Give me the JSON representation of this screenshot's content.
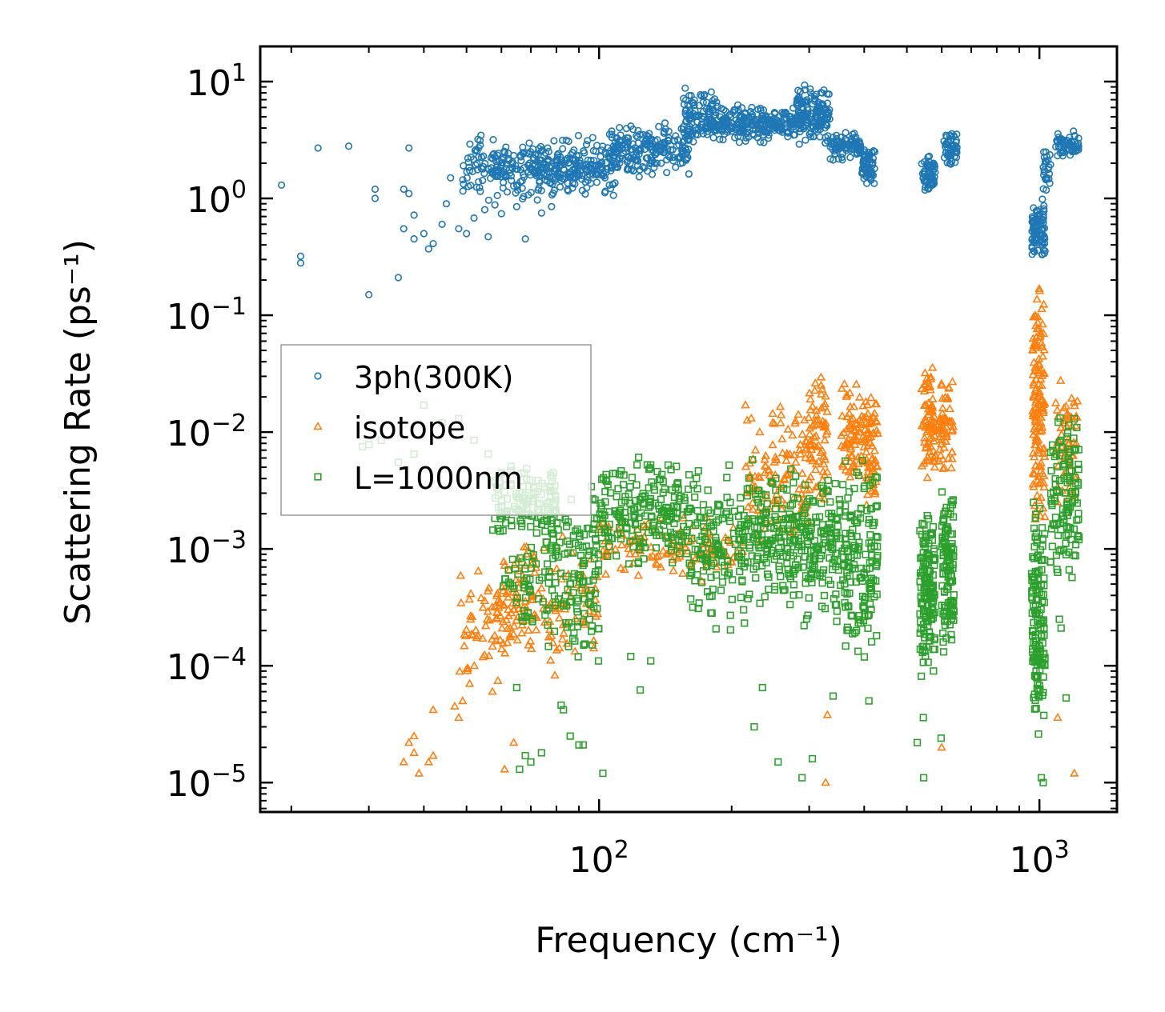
{
  "chart_data": {
    "type": "scatter",
    "xlabel": "Frequency (cm⁻¹)",
    "ylabel": "Scattering Rate (ps⁻¹)",
    "xscale": "log",
    "yscale": "log",
    "xlim": [
      17,
      1500
    ],
    "ylim": [
      5.6e-06,
      20
    ],
    "xticks": [
      {
        "base": "10",
        "exp": "2",
        "value": 100
      },
      {
        "base": "10",
        "exp": "3",
        "value": 1000
      }
    ],
    "yticks": [
      {
        "base": "10",
        "exp": "1",
        "value": 10
      },
      {
        "base": "10",
        "exp": "0",
        "value": 1
      },
      {
        "base": "10",
        "exp": "−1",
        "value": 0.1
      },
      {
        "base": "10",
        "exp": "−2",
        "value": 0.01
      },
      {
        "base": "10",
        "exp": "−3",
        "value": 0.001
      },
      {
        "base": "10",
        "exp": "−4",
        "value": 0.0001
      },
      {
        "base": "10",
        "exp": "−5",
        "value": 1e-05
      }
    ],
    "legend": {
      "position": "center-left",
      "entries": [
        "3ph(300K)",
        "isotope",
        "L=1000nm"
      ]
    },
    "series": [
      {
        "name": "3ph(300K)",
        "marker": "circle",
        "color": "#1f77b4",
        "points": [
          [
            19,
            1.3
          ],
          [
            21,
            0.32
          ],
          [
            21,
            0.28
          ],
          [
            23,
            2.7
          ],
          [
            27,
            2.8
          ],
          [
            30,
            0.15
          ],
          [
            31,
            1.2
          ],
          [
            31,
            1.0
          ],
          [
            35,
            0.21
          ],
          [
            36,
            1.2
          ],
          [
            36,
            0.55
          ],
          [
            37,
            2.7
          ],
          [
            37,
            1.1
          ],
          [
            38,
            0.72
          ],
          [
            38,
            0.45
          ],
          [
            40,
            0.5
          ],
          [
            41,
            0.37
          ],
          [
            42,
            0.41
          ],
          [
            44,
            0.6
          ],
          [
            45,
            0.9
          ],
          [
            46,
            1.5
          ],
          [
            48,
            0.55
          ],
          [
            50,
            0.5
          ],
          [
            52,
            0.68
          ],
          [
            55,
            0.8
          ],
          [
            56,
            0.47
          ],
          [
            58,
            0.88
          ],
          [
            60,
            0.74
          ],
          [
            65,
            0.85
          ],
          [
            68,
            0.45
          ],
          [
            74,
            0.75
          ],
          [
            78,
            0.85
          ]
        ],
        "clusters": [
          {
            "x": [
              49,
              62
            ],
            "y": [
              0.9,
              3.6
            ],
            "n": 70
          },
          {
            "x": [
              58,
              80
            ],
            "y": [
              0.9,
              3.5
            ],
            "n": 140
          },
          {
            "x": [
              80,
              110
            ],
            "y": [
              1.0,
              3.5
            ],
            "n": 160
          },
          {
            "x": [
              105,
              160
            ],
            "y": [
              1.5,
              4.5
            ],
            "n": 200
          },
          {
            "x": [
              155,
              185
            ],
            "y": [
              2.8,
              9.0
            ],
            "n": 110
          },
          {
            "x": [
              185,
              280
            ],
            "y": [
              3.0,
              6.5
            ],
            "n": 220
          },
          {
            "x": [
              280,
              335
            ],
            "y": [
              2.8,
              9.5
            ],
            "n": 160
          },
          {
            "x": [
              335,
              395
            ],
            "y": [
              2.0,
              4.0
            ],
            "n": 80
          },
          {
            "x": [
              395,
              425
            ],
            "y": [
              1.2,
              2.8
            ],
            "n": 60
          },
          {
            "x": [
              540,
              580
            ],
            "y": [
              1.1,
              2.4
            ],
            "n": 60
          },
          {
            "x": [
              605,
              650
            ],
            "y": [
              1.9,
              3.9
            ],
            "n": 50
          },
          {
            "x": [
              960,
              1030
            ],
            "y": [
              0.28,
              1.0
            ],
            "n": 90
          },
          {
            "x": [
              1020,
              1060
            ],
            "y": [
              1.0,
              3.0
            ],
            "n": 25
          },
          {
            "x": [
              1080,
              1230
            ],
            "y": [
              2.2,
              3.8
            ],
            "n": 60
          }
        ]
      },
      {
        "name": "isotope",
        "marker": "triangle",
        "color": "#ff7f0e",
        "points": [
          [
            36,
            1.5e-05
          ],
          [
            37,
            2.2e-05
          ],
          [
            38,
            1.8e-05
          ],
          [
            38,
            2.5e-05
          ],
          [
            39,
            1.2e-05
          ],
          [
            41,
            1.5e-05
          ],
          [
            42,
            1.7e-05
          ],
          [
            42,
            4.2e-05
          ],
          [
            47,
            4.5e-05
          ],
          [
            48,
            3.6e-05
          ],
          [
            49,
            5e-05
          ],
          [
            61,
            1.3e-05
          ],
          [
            64,
            2.2e-05
          ],
          [
            327,
            1e-05
          ],
          [
            330,
            3.8e-05
          ],
          [
            1200,
            1.2e-05
          ],
          [
            1100,
            3.6e-05
          ],
          [
            600,
            2e-05
          ]
        ],
        "clusters": [
          {
            "x": [
              48,
              62
            ],
            "y": [
              5e-05,
              0.0008
            ],
            "n": 60
          },
          {
            "x": [
              60,
              75
            ],
            "y": [
              8e-05,
              0.0015
            ],
            "n": 80
          },
          {
            "x": [
              75,
              100
            ],
            "y": [
              8e-05,
              0.0015
            ],
            "n": 60
          },
          {
            "x": [
              100,
              215
            ],
            "y": [
              0.0005,
              0.002
            ],
            "n": 120
          },
          {
            "x": [
              215,
              300
            ],
            "y": [
              0.001,
              0.02
            ],
            "n": 120
          },
          {
            "x": [
              300,
              330
            ],
            "y": [
              0.002,
              0.045
            ],
            "n": 70
          },
          {
            "x": [
              355,
              400
            ],
            "y": [
              0.003,
              0.03
            ],
            "n": 70
          },
          {
            "x": [
              400,
              430
            ],
            "y": [
              0.002,
              0.025
            ],
            "n": 60
          },
          {
            "x": [
              540,
              580
            ],
            "y": [
              0.004,
              0.04
            ],
            "n": 70
          },
          {
            "x": [
              590,
              640
            ],
            "y": [
              0.004,
              0.035
            ],
            "n": 60
          },
          {
            "x": [
              965,
              1030
            ],
            "y": [
              0.0012,
              0.25
            ],
            "n": 140
          },
          {
            "x": [
              1080,
              1220
            ],
            "y": [
              0.002,
              0.03
            ],
            "n": 60
          }
        ]
      },
      {
        "name": "L=1000nm",
        "marker": "square",
        "color": "#2ca02c",
        "points": [
          [
            29,
            0.0075
          ],
          [
            30,
            0.0078
          ],
          [
            32,
            0.0085
          ],
          [
            35,
            0.0055
          ],
          [
            38,
            0.0065
          ],
          [
            40,
            0.017
          ],
          [
            44,
            0.012
          ],
          [
            48,
            0.013
          ],
          [
            52,
            0.0085
          ],
          [
            56,
            0.0065
          ],
          [
            60,
            0.0045
          ],
          [
            63,
            0.0035
          ],
          [
            65,
            6.5e-05
          ],
          [
            66,
            1.3e-05
          ],
          [
            68,
            1.7e-05
          ],
          [
            70,
            1.5e-05
          ],
          [
            74,
            1.8e-05
          ],
          [
            82,
            4.6e-05
          ],
          [
            83,
            4.2e-05
          ],
          [
            86,
            2.5e-05
          ],
          [
            90,
            2.1e-05
          ],
          [
            92,
            2.1e-05
          ],
          [
            102,
            1.2e-05
          ],
          [
            118,
            0.00012
          ],
          [
            124,
            6.2e-05
          ],
          [
            131,
            0.00011
          ],
          [
            225,
            3e-05
          ],
          [
            235,
            6.5e-05
          ],
          [
            255,
            1.5e-05
          ],
          [
            289,
            1.1e-05
          ],
          [
            305,
            1.6e-05
          ],
          [
            340,
            5.5e-05
          ],
          [
            410,
            5e-05
          ],
          [
            528,
            2.2e-05
          ],
          [
            545,
            3.6e-05
          ],
          [
            546,
            1.1e-05
          ],
          [
            598,
            2.4e-05
          ],
          [
            995,
            2.6e-05
          ],
          [
            1010,
            1.1e-05
          ],
          [
            1020,
            1e-05
          ],
          [
            1110,
            0.00025
          ],
          [
            1120,
            0.00021
          ],
          [
            1150,
            5.3e-05
          ]
        ],
        "clusters": [
          {
            "x": [
              57,
              80
            ],
            "y": [
              0.0012,
              0.0055
            ],
            "n": 120
          },
          {
            "x": [
              60,
              80
            ],
            "y": [
              0.00015,
              0.0012
            ],
            "n": 50
          },
          {
            "x": [
              75,
              100
            ],
            "y": [
              0.0001,
              0.004
            ],
            "n": 140
          },
          {
            "x": [
              100,
              160
            ],
            "y": [
              0.0006,
              0.007
            ],
            "n": 200
          },
          {
            "x": [
              160,
              225
            ],
            "y": [
              0.0002,
              0.006
            ],
            "n": 160
          },
          {
            "x": [
              225,
              290
            ],
            "y": [
              0.0003,
              0.005
            ],
            "n": 150
          },
          {
            "x": [
              290,
              355
            ],
            "y": [
              0.0002,
              0.0045
            ],
            "n": 130
          },
          {
            "x": [
              355,
              430
            ],
            "y": [
              8e-05,
              0.008
            ],
            "n": 150
          },
          {
            "x": [
              535,
              580
            ],
            "y": [
              7e-05,
              0.0025
            ],
            "n": 140
          },
          {
            "x": [
              600,
              640
            ],
            "y": [
              0.00012,
              0.0035
            ],
            "n": 120
          },
          {
            "x": [
              960,
              1030
            ],
            "y": [
              3e-05,
              0.003
            ],
            "n": 140
          },
          {
            "x": [
              1050,
              1230
            ],
            "y": [
              0.0005,
              0.015
            ],
            "n": 120
          }
        ]
      }
    ]
  }
}
